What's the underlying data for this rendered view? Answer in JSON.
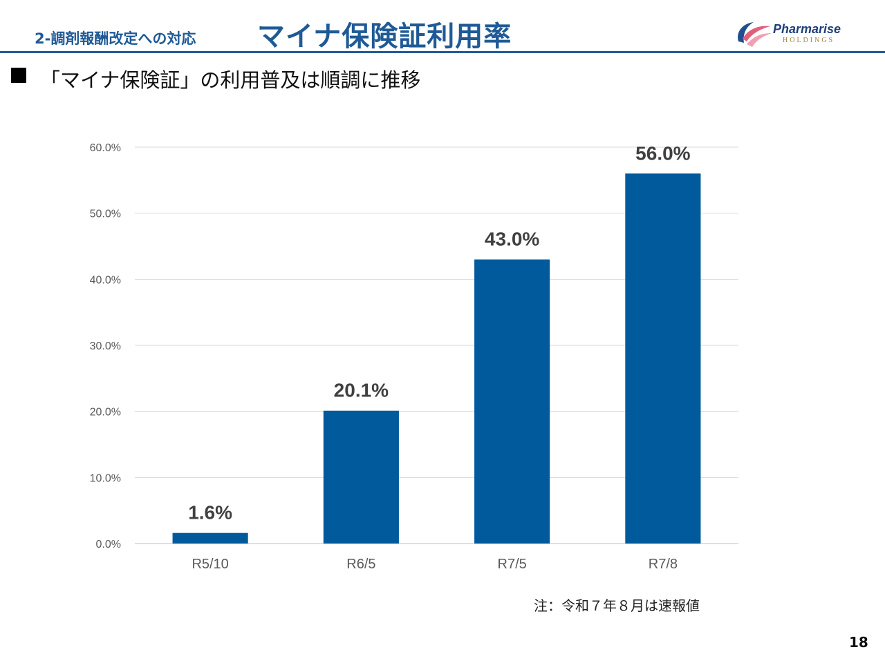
{
  "header": {
    "section_label": "2-調剤報酬改定への対応",
    "title": "マイナ保険証利用率"
  },
  "logo": {
    "name": "Pharmarise",
    "sub": "HOLDINGS"
  },
  "subtitle": "「マイナ保険証」の利用普及は順調に推移",
  "chart_data": {
    "type": "bar",
    "title": "",
    "xlabel": "",
    "ylabel": "",
    "categories": [
      "R5/10",
      "R6/5",
      "R7/5",
      "R7/8"
    ],
    "values": [
      1.6,
      20.1,
      43.0,
      56.0
    ],
    "data_labels": [
      "1.6%",
      "20.1%",
      "43.0%",
      "56.0%"
    ],
    "ylim": [
      0,
      60
    ],
    "yticks": [
      0,
      10,
      20,
      30,
      40,
      50,
      60
    ],
    "ytick_labels": [
      "0.0%",
      "10.0%",
      "20.0%",
      "30.0%",
      "40.0%",
      "50.0%",
      "60.0%"
    ],
    "grid": true,
    "bar_color": "#005a9c"
  },
  "note": "注：令和７年８月は速報値",
  "page_number": "18"
}
